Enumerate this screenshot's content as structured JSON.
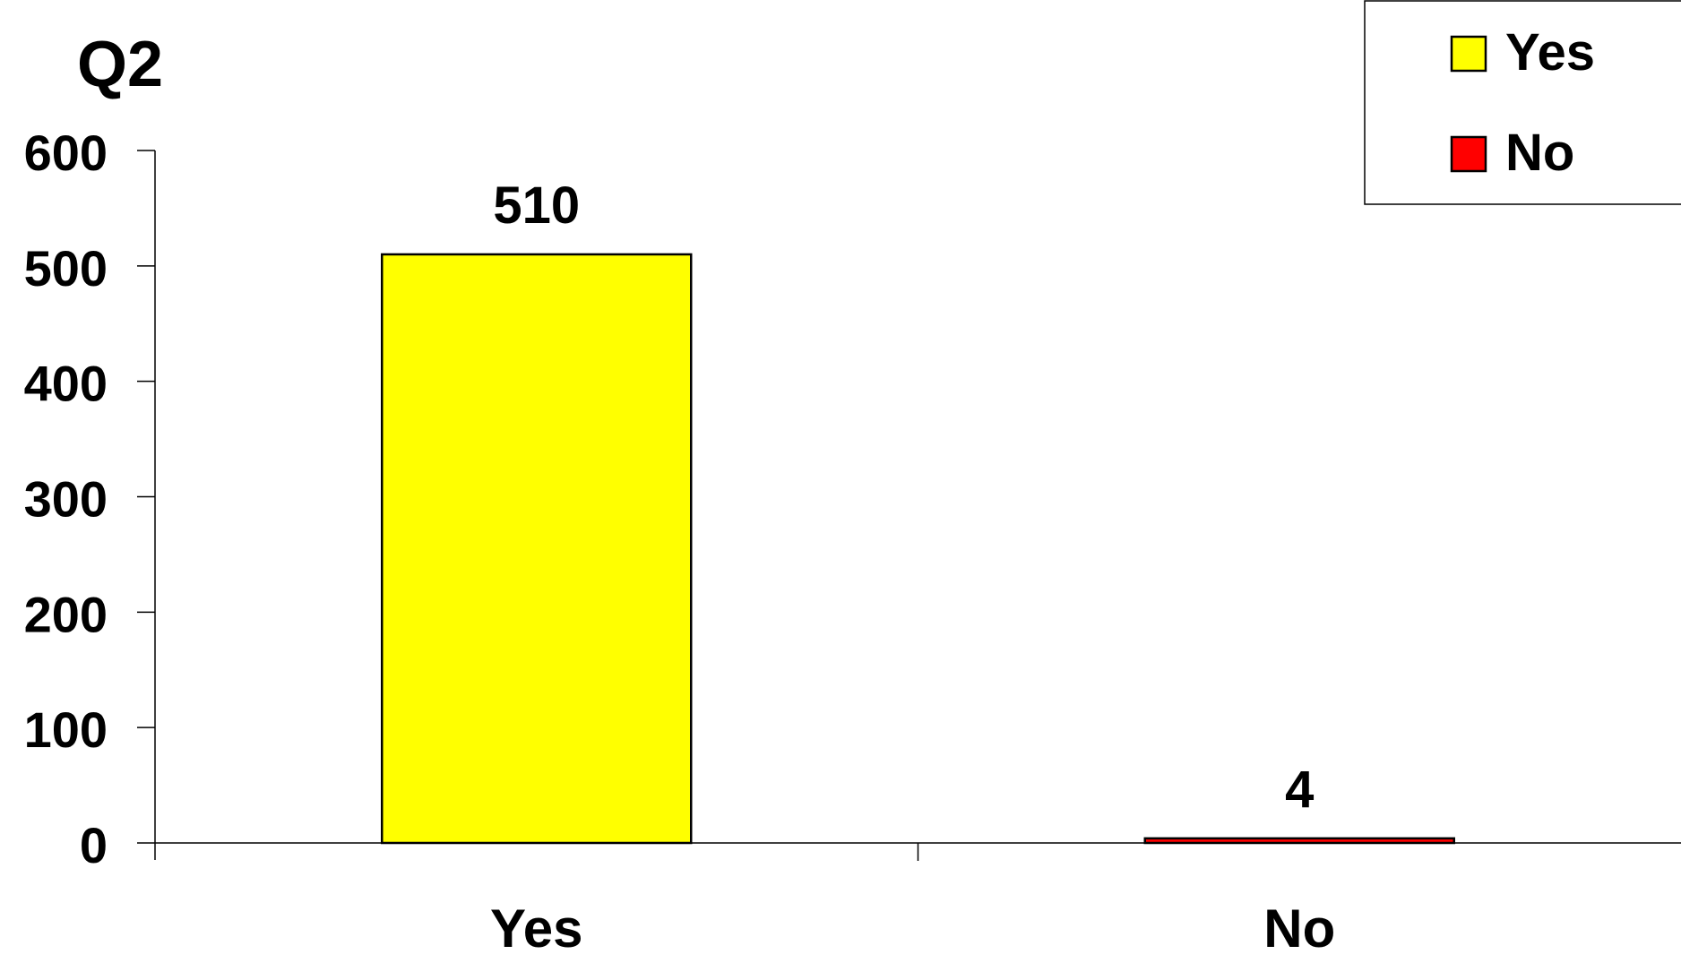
{
  "chart_data": {
    "type": "bar",
    "title": "Q2",
    "categories": [
      "Yes",
      "No"
    ],
    "values": [
      510,
      4
    ],
    "colors": [
      "#ffff00",
      "#ff0000"
    ],
    "data_labels": [
      "510",
      "4"
    ],
    "ylim": [
      0,
      600
    ],
    "yticks": [
      0,
      100,
      200,
      300,
      400,
      500,
      600
    ],
    "grid": false,
    "legend": {
      "position": "top-right",
      "entries": [
        {
          "label": "Yes",
          "color": "#ffff00"
        },
        {
          "label": "No",
          "color": "#ff0000"
        }
      ]
    }
  }
}
